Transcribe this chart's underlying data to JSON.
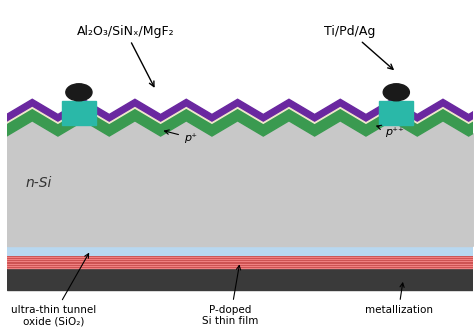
{
  "bg_color": "#ffffff",
  "n_si_color": "#c8c8c8",
  "tunnel_oxide_color": "#b8d8f0",
  "p_doped_color": "#f08080",
  "metallization_color": "#3a3a3a",
  "green_color": "#3a9a50",
  "purple_color": "#6a28a0",
  "cream_color": "#f0e8cc",
  "contact_color": "#2ab8a8",
  "wire_color": "#1a1a1a",
  "labels": {
    "al2o3": "Al₂O₃/SiNₓ/MgF₂",
    "ti_pd_ag": "Ti/Pd/Ag",
    "n_si": "n-Si",
    "p_plus": "p⁺",
    "p_plusplus": "p⁺⁺",
    "tunnel": "ultra-thin tunnel\noxide (SiO₂)",
    "p_doped": "P-doped\nSi thin film",
    "metallization": "metallization"
  }
}
